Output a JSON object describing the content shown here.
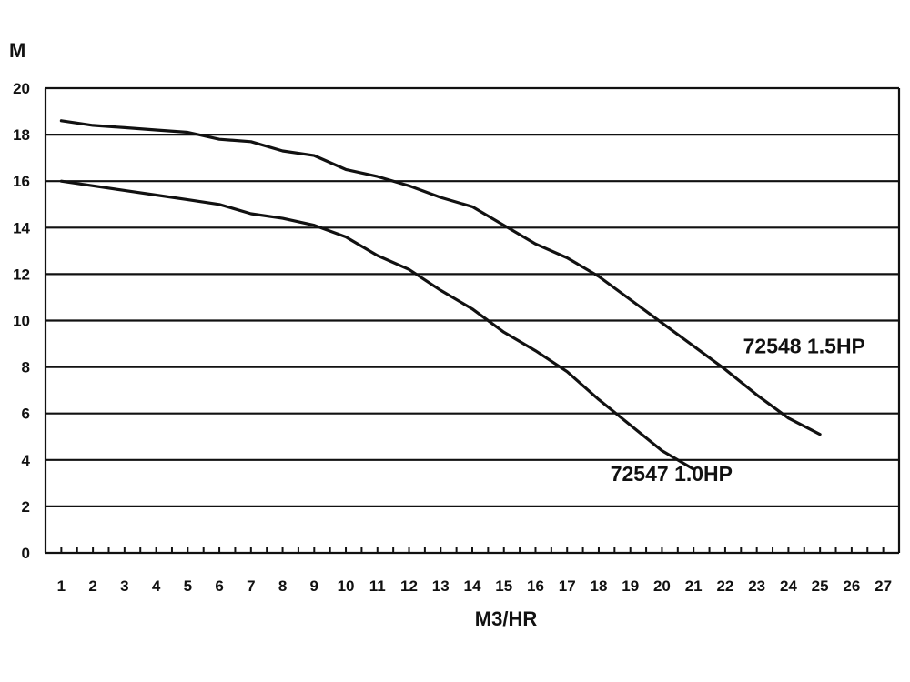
{
  "chart_data": {
    "type": "line",
    "title": "",
    "xlabel": "M3/HR",
    "ylabel": "M",
    "xlim": [
      0.5,
      27.5
    ],
    "ylim": [
      0,
      20
    ],
    "x_ticks": [
      1,
      2,
      3,
      4,
      5,
      6,
      7,
      8,
      9,
      10,
      11,
      12,
      13,
      14,
      15,
      16,
      17,
      18,
      19,
      20,
      21,
      22,
      23,
      24,
      25,
      26,
      27
    ],
    "y_ticks": [
      0,
      2,
      4,
      6,
      8,
      10,
      12,
      14,
      16,
      18,
      20
    ],
    "grid": "horizontal",
    "series": [
      {
        "name": "72548 1.5HP",
        "x": [
          1,
          2,
          3,
          4,
          5,
          6,
          7,
          8,
          9,
          10,
          11,
          12,
          13,
          14,
          15,
          16,
          17,
          18,
          19,
          20,
          21,
          22,
          23,
          24,
          25
        ],
        "y": [
          18.6,
          18.4,
          18.3,
          18.2,
          18.1,
          17.8,
          17.7,
          17.3,
          17.1,
          16.5,
          16.2,
          15.8,
          15.3,
          14.9,
          14.1,
          13.3,
          12.7,
          11.9,
          10.9,
          9.9,
          8.9,
          7.9,
          6.8,
          5.8,
          5.1
        ],
        "color": "#111111"
      },
      {
        "name": "72547 1.0HP",
        "x": [
          1,
          2,
          3,
          4,
          5,
          6,
          7,
          8,
          9,
          10,
          11,
          12,
          13,
          14,
          15,
          16,
          17,
          18,
          19,
          20,
          21
        ],
        "y": [
          16.0,
          15.8,
          15.6,
          15.4,
          15.2,
          15.0,
          14.6,
          14.4,
          14.1,
          13.6,
          12.8,
          12.2,
          11.3,
          10.5,
          9.5,
          8.7,
          7.8,
          6.6,
          5.5,
          4.4,
          3.6
        ],
        "color": "#111111"
      }
    ],
    "annotations": [
      {
        "text": "72548 1.5HP",
        "x": 24.5,
        "y": 8.6
      },
      {
        "text": "72547 1.0HP",
        "x": 20.3,
        "y": 3.1
      }
    ]
  }
}
